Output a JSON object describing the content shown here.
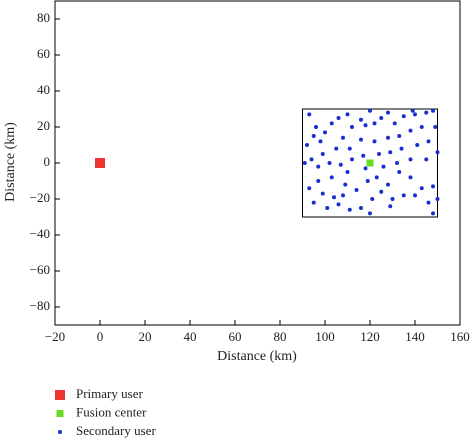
{
  "chart_data": {
    "type": "scatter",
    "x_label": "Distance (km)",
    "y_label": "Distance (km)",
    "xlim": [
      -20,
      160
    ],
    "ylim": [
      -90,
      90
    ],
    "xticks": [
      {
        "value": -20,
        "label": "−20"
      },
      0,
      20,
      40,
      60,
      80,
      100,
      120,
      140,
      160
    ],
    "yticks": [
      {
        "value": -80,
        "label": "−80"
      },
      {
        "value": -60,
        "label": "−60"
      },
      {
        "value": -40,
        "label": "−40"
      },
      {
        "value": -20,
        "label": "−20"
      },
      0,
      20,
      40,
      60,
      80
    ],
    "region": {
      "x": [
        90,
        150
      ],
      "y": [
        -30,
        30
      ]
    },
    "series": [
      {
        "name": "Primary user",
        "color": "#ee3333",
        "marker": "square",
        "x": [
          0
        ],
        "values": [
          0
        ]
      },
      {
        "name": "Fusion center",
        "color": "#66dd22",
        "marker": "square",
        "x": [
          120
        ],
        "values": [
          0
        ]
      },
      {
        "name": "Secondary user",
        "color": "#1a2fd0",
        "marker": "circle",
        "x": [
          93,
          96,
          95,
          92,
          98,
          100,
          103,
          106,
          110,
          108,
          112,
          116,
          118,
          120,
          122,
          125,
          128,
          131,
          135,
          139,
          140,
          145,
          148,
          149,
          143,
          138,
          133,
          128,
          122,
          116,
          111,
          105,
          99,
          94,
          91,
          97,
          102,
          107,
          112,
          117,
          124,
          129,
          134,
          141,
          146,
          150,
          145,
          138,
          132,
          126,
          118,
          110,
          103,
          97,
          93,
          99,
          104,
          109,
          114,
          119,
          123,
          128,
          133,
          138,
          143,
          148,
          150,
          146,
          140,
          135,
          130,
          125,
          121,
          116,
          111,
          106,
          101,
          95,
          120,
          148,
          129,
          108
        ],
        "values": [
          27,
          20,
          15,
          10,
          12,
          17,
          22,
          25,
          27,
          14,
          20,
          24,
          21,
          29,
          22,
          25,
          28,
          22,
          26,
          29,
          27,
          28,
          29,
          20,
          20,
          18,
          15,
          14,
          12,
          13,
          8,
          8,
          5,
          2,
          0,
          -2,
          0,
          -1,
          2,
          4,
          5,
          6,
          8,
          10,
          12,
          6,
          2,
          2,
          0,
          -2,
          -3,
          -5,
          -8,
          -10,
          -14,
          -17,
          -19,
          -12,
          -15,
          -10,
          -8,
          -12,
          -5,
          -8,
          -14,
          -13,
          -20,
          -22,
          -18,
          -18,
          -20,
          -16,
          -20,
          -25,
          -26,
          -23,
          -25,
          -22,
          -28,
          -28,
          -24,
          -18
        ]
      }
    ]
  }
}
